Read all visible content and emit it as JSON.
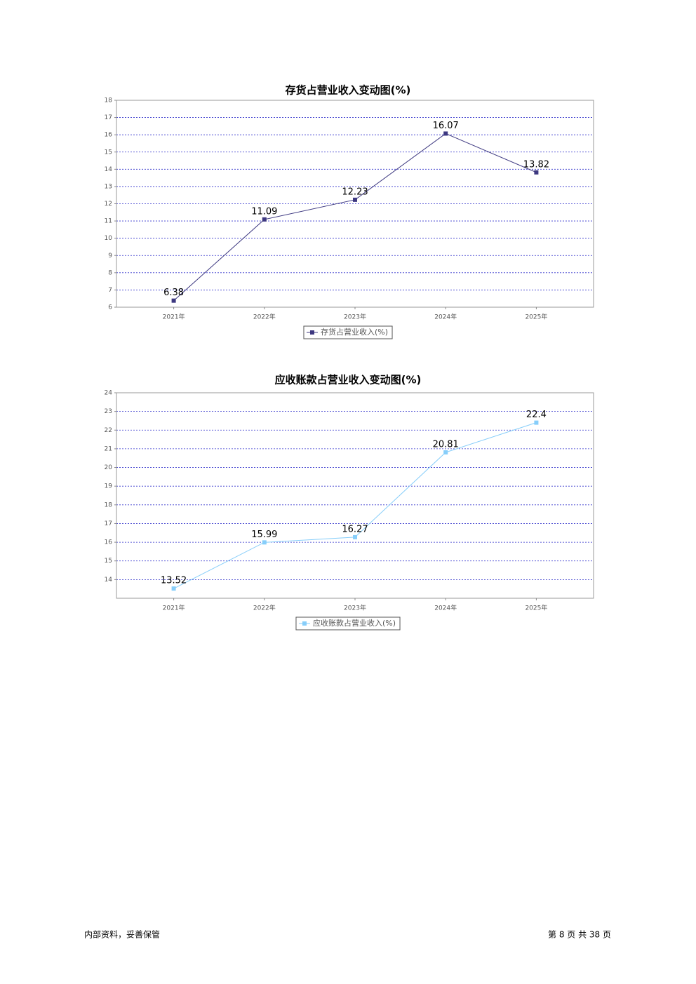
{
  "chart_data": [
    {
      "type": "line",
      "title": "存货占营业收入变动图(%)",
      "categories": [
        "2021年",
        "2022年",
        "2023年",
        "2024年",
        "2025年"
      ],
      "series": [
        {
          "name": "存货占营业收入(%)",
          "color": "#3d3880",
          "values": [
            6.38,
            11.09,
            12.23,
            16.07,
            13.82
          ]
        }
      ],
      "ylim": [
        6,
        18
      ],
      "yticks": [
        6,
        7,
        8,
        9,
        10,
        11,
        12,
        13,
        14,
        15,
        16,
        17,
        18
      ],
      "grid": true,
      "legend": "bottom"
    },
    {
      "type": "line",
      "title": "应收账款占营业收入变动图(%)",
      "categories": [
        "2021年",
        "2022年",
        "2023年",
        "2024年",
        "2025年"
      ],
      "series": [
        {
          "name": "应收账款占营业收入(%)",
          "color": "#87cefa",
          "values": [
            13.52,
            15.99,
            16.27,
            20.81,
            22.4
          ]
        }
      ],
      "ylim": [
        13,
        24
      ],
      "yticks": [
        14,
        15,
        16,
        17,
        18,
        19,
        20,
        21,
        22,
        23,
        24
      ],
      "grid": true,
      "legend": "bottom"
    }
  ],
  "footer": {
    "left": "内部资料，妥善保管",
    "right": "第 8 页  共 38 页"
  }
}
